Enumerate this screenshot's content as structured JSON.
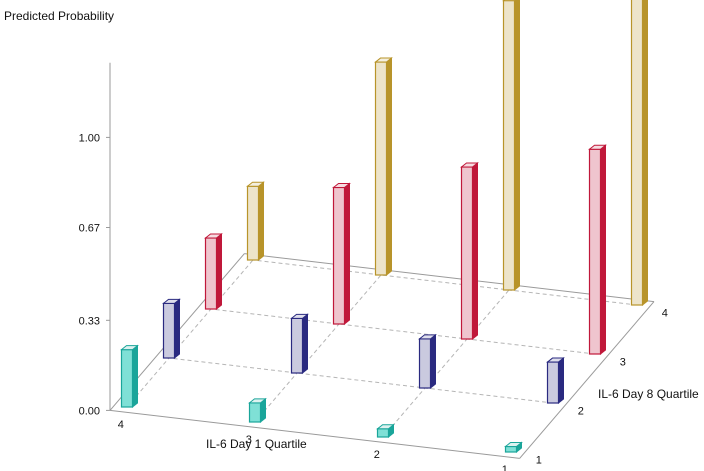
{
  "chart_data": {
    "type": "bar",
    "projection": "3d",
    "ylabel": "Predicted Probability",
    "x_axis_label": "IL-6 Day 1 Quartile",
    "z_axis_label": "IL-6 Day 8 Quartile",
    "x_categories": [
      "1",
      "2",
      "3",
      "4"
    ],
    "z_categories": [
      "1",
      "2",
      "3",
      "4"
    ],
    "yticks": [
      "0.00",
      "0.33",
      "0.67",
      "1.00"
    ],
    "ylim": [
      0,
      1.2
    ],
    "series": [
      {
        "name": "4",
        "color": "#b8942a",
        "values": [
          1.21,
          1.06,
          0.78,
          0.27
        ]
      },
      {
        "name": "3",
        "color": "#c0183a",
        "values": [
          0.75,
          0.63,
          0.5,
          0.26
        ]
      },
      {
        "name": "2",
        "color": "#2a2a80",
        "values": [
          0.15,
          0.18,
          0.2,
          0.2
        ]
      },
      {
        "name": "1",
        "color": "#1aa59a",
        "values": [
          0.02,
          0.03,
          0.07,
          0.21
        ]
      }
    ]
  }
}
